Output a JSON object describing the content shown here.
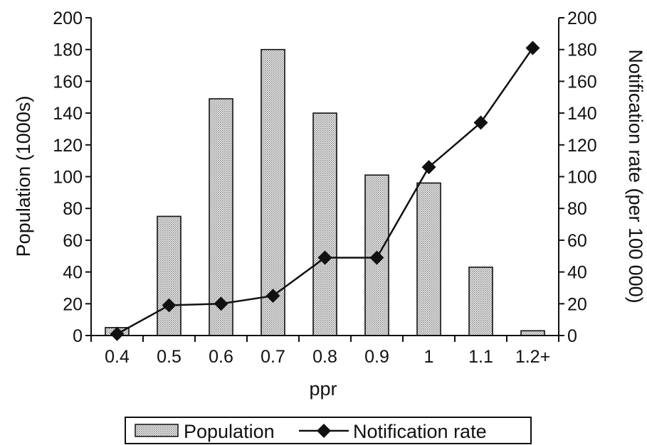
{
  "chart_data": {
    "type": "bar+line",
    "categories": [
      "0.4",
      "0.5",
      "0.6",
      "0.7",
      "0.8",
      "0.9",
      "1",
      "1.1",
      "1.2+"
    ],
    "xlabel": "ppr",
    "ylabel_left": "Population (1000s)",
    "ylabel_right": "Notification rate (per 100 000)",
    "ylim_left": [
      0,
      200
    ],
    "ylim_right": [
      0,
      200
    ],
    "yticks": [
      "0",
      "20",
      "40",
      "60",
      "80",
      "100",
      "120",
      "140",
      "160",
      "180",
      "200"
    ],
    "series": [
      {
        "name": "Population",
        "type": "bar",
        "axis": "left",
        "values": [
          5,
          75,
          149,
          180,
          140,
          101,
          96,
          43,
          3
        ]
      },
      {
        "name": "Notification rate",
        "type": "line",
        "axis": "right",
        "values": [
          1,
          19,
          20,
          25,
          49,
          49,
          106,
          134,
          181
        ]
      }
    ],
    "legend_position": "bottom",
    "grid": false
  },
  "colors": {
    "bar_fill": "#d0d0d0",
    "bar_stroke": "#111111",
    "line": "#111111"
  }
}
